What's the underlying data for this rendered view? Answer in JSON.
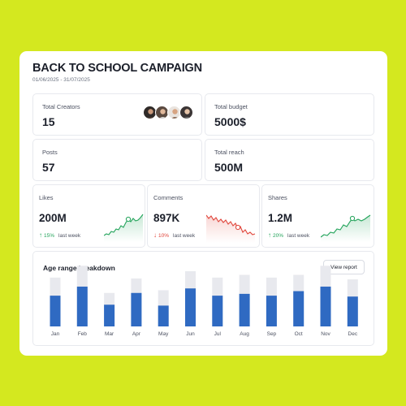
{
  "campaign": {
    "title": "BACK TO SCHOOL CAMPAIGN",
    "date_range": "01/06/2025 - 31/07/2025"
  },
  "stats": {
    "total_creators": {
      "label": "Total Creators",
      "value": "15"
    },
    "total_budget": {
      "label": "Total budget",
      "value": "5000$"
    },
    "posts": {
      "label": "Posts",
      "value": "57"
    },
    "total_reach": {
      "label": "Total reach",
      "value": "500M"
    }
  },
  "metrics": {
    "likes": {
      "label": "Likes",
      "value": "200M",
      "delta": "15%",
      "direction": "up",
      "period": "last week"
    },
    "comments": {
      "label": "Comments",
      "value": "897K",
      "delta": "10%",
      "direction": "down",
      "period": "last week"
    },
    "shares": {
      "label": "Shares",
      "value": "1.2M",
      "delta": "20%",
      "direction": "up",
      "period": "last week"
    }
  },
  "colors": {
    "background": "#d4e81f",
    "card": "#ffffff",
    "bar": "#2f6ac2",
    "bar_track": "#e8e9ee",
    "up": "#22a35a",
    "down": "#e0443a"
  },
  "age_chart": {
    "title": "Age range breakdown",
    "view_report_label": "View report"
  },
  "chart_data": {
    "type": "bar",
    "categories": [
      "Jan",
      "Feb",
      "Mar",
      "Apr",
      "May",
      "Jun",
      "Jul",
      "Aug",
      "Sep",
      "Oct",
      "Nov",
      "Dec"
    ],
    "series": [
      {
        "values": [
          34,
          44,
          24,
          37,
          23,
          42,
          34,
          36,
          34,
          39,
          44,
          33
        ]
      },
      {
        "values": [
          54,
          67,
          37,
          53,
          40,
          61,
          54,
          57,
          54,
          57,
          67,
          52
        ]
      }
    ],
    "ylim": [
      0,
      70
    ],
    "grid": false,
    "axes": "hidden"
  }
}
